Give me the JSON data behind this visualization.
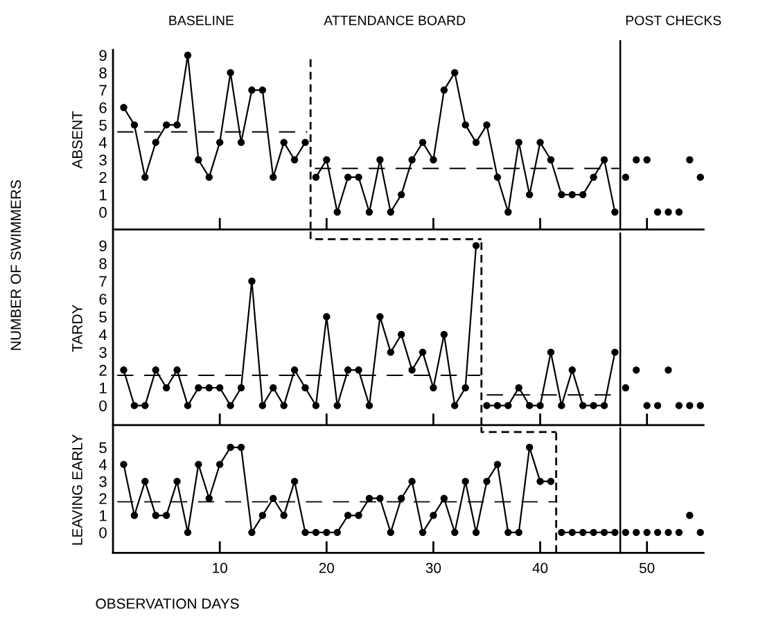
{
  "chart_data": [
    {
      "type": "line",
      "ylabel": "ABSENT",
      "xlim": [
        0,
        55.3
      ],
      "xticks": [
        10,
        20,
        30,
        40,
        50
      ],
      "ylim": [
        -1,
        9.3
      ],
      "yticks": [
        0,
        1,
        2,
        3,
        4,
        5,
        6,
        7,
        8,
        9
      ],
      "tick_labels": "y",
      "marker": "circle",
      "line_style": "solid",
      "annotations": [
        "BASELINE",
        "ATTENDANCE BOARD",
        "POST CHECKS"
      ],
      "ref_lines": [
        {
          "axis": "x",
          "value": 18.5,
          "color": "#000000",
          "line_style": "dashed"
        },
        {
          "axis": "x",
          "value": 47.5,
          "color": "#000000",
          "line_style": "solid"
        }
      ],
      "series": [
        {
          "color": "#000000",
          "x": [
            1,
            2,
            3,
            4,
            5,
            6,
            7,
            8,
            9,
            10,
            11,
            12,
            13,
            14,
            15,
            16,
            17,
            18
          ],
          "values": [
            6,
            5,
            2,
            4,
            5,
            5,
            9,
            3,
            2,
            4,
            8,
            4,
            7,
            7,
            2,
            4,
            3,
            4
          ]
        },
        {
          "color": "#000000",
          "x": [
            19,
            20,
            21,
            22,
            23,
            24,
            25,
            26,
            27,
            28,
            29,
            30,
            31,
            32,
            33,
            34,
            35,
            36,
            37,
            38,
            39,
            40,
            41,
            42,
            43,
            44,
            45,
            46,
            47
          ],
          "values": [
            2,
            3,
            0,
            2,
            2,
            0,
            3,
            0,
            1,
            3,
            4,
            3,
            7,
            8,
            5,
            4,
            5,
            2,
            0,
            4,
            1,
            4,
            3,
            1,
            1,
            1,
            2,
            3,
            0
          ]
        },
        {
          "type": "scatter",
          "color": "#000000",
          "x": [
            48,
            49,
            50,
            51,
            52,
            53,
            54,
            55
          ],
          "values": [
            2,
            3,
            3,
            0,
            0,
            0,
            3,
            2
          ]
        },
        {
          "type": "line",
          "line_style": "dashed",
          "marker": "none",
          "color": "#000000",
          "x": [
            0.4,
            18.2
          ],
          "values": [
            4.6,
            4.6
          ]
        },
        {
          "type": "line",
          "line_style": "dashed",
          "marker": "none",
          "color": "#000000",
          "x": [
            18.9,
            47.4
          ],
          "values": [
            2.5,
            2.5
          ]
        }
      ]
    },
    {
      "type": "line",
      "ylabel": "TARDY",
      "xlim": [
        0,
        55.3
      ],
      "xticks": [
        10,
        20,
        30,
        40,
        50
      ],
      "ylim": [
        -1.1,
        9.8
      ],
      "yticks": [
        0,
        1,
        2,
        3,
        4,
        5,
        6,
        7,
        8,
        9
      ],
      "tick_labels": "y",
      "marker": "circle",
      "line_style": "solid",
      "annotations": [
        "NUMBER OF SWIMMERS"
      ],
      "ref_lines": [
        {
          "axis": "x",
          "value": 34.5,
          "color": "#000000",
          "line_style": "dashed"
        },
        {
          "axis": "x",
          "value": 47.5,
          "color": "#000000",
          "line_style": "solid"
        }
      ],
      "series": [
        {
          "color": "#000000",
          "x": [
            1,
            2,
            3,
            4,
            5,
            6,
            7,
            8,
            9,
            10,
            11,
            12,
            13,
            14,
            15,
            16,
            17,
            18,
            19,
            20,
            21,
            22,
            23,
            24,
            25,
            26,
            27,
            28,
            29,
            30,
            31,
            32,
            33,
            34
          ],
          "values": [
            2,
            0,
            0,
            2,
            1,
            2,
            0,
            1,
            1,
            1,
            0,
            1,
            7,
            0,
            1,
            0,
            2,
            1,
            0,
            5,
            0,
            2,
            2,
            0,
            5,
            3,
            4,
            2,
            3,
            1,
            4,
            0,
            1,
            9
          ]
        },
        {
          "color": "#000000",
          "x": [
            35,
            36,
            37,
            38,
            39,
            40,
            41,
            42,
            43,
            44,
            45,
            46,
            47
          ],
          "values": [
            0,
            0,
            0,
            1,
            0,
            0,
            3,
            0,
            2,
            0,
            0,
            0,
            3
          ]
        },
        {
          "type": "scatter",
          "color": "#000000",
          "x": [
            48,
            49,
            50,
            51,
            52,
            53,
            54,
            55
          ],
          "values": [
            1,
            2,
            0,
            0,
            2,
            0,
            0,
            0
          ]
        },
        {
          "type": "line",
          "line_style": "dashed",
          "marker": "none",
          "color": "#000000",
          "x": [
            0.4,
            34.4
          ],
          "values": [
            1.7,
            1.7
          ]
        },
        {
          "type": "line",
          "line_style": "dashed",
          "marker": "none",
          "color": "#000000",
          "x": [
            35,
            47.5
          ],
          "values": [
            0.6,
            0.6
          ]
        }
      ]
    },
    {
      "type": "line",
      "ylabel": "LEAVING EARLY",
      "xlabel": "OBSERVATION DAYS",
      "xlim": [
        0,
        55.3
      ],
      "xticks": [
        10,
        20,
        30,
        40,
        50
      ],
      "ylim": [
        -1.2,
        6.2
      ],
      "yticks": [
        0,
        1,
        2,
        3,
        4,
        5
      ],
      "marker": "circle",
      "line_style": "solid",
      "ref_lines": [
        {
          "axis": "x",
          "value": 41.5,
          "color": "#000000",
          "line_style": "dashed"
        },
        {
          "axis": "x",
          "value": 47.5,
          "color": "#000000",
          "line_style": "solid"
        }
      ],
      "series": [
        {
          "color": "#000000",
          "x": [
            1,
            2,
            3,
            4,
            5,
            6,
            7,
            8,
            9,
            10,
            11,
            12,
            13,
            14,
            15,
            16,
            17,
            18,
            19,
            20,
            21,
            22,
            23,
            24,
            25,
            26,
            27,
            28,
            29,
            30,
            31,
            32,
            33,
            34,
            35,
            36,
            37,
            38,
            39,
            40,
            41
          ],
          "values": [
            4,
            1,
            3,
            1,
            1,
            3,
            0,
            4,
            2,
            4,
            5,
            5,
            0,
            1,
            2,
            1,
            3,
            0,
            0,
            0,
            0,
            1,
            1,
            2,
            2,
            0,
            2,
            3,
            0,
            1,
            2,
            0,
            3,
            0,
            3,
            4,
            0,
            0,
            5,
            3,
            3
          ]
        },
        {
          "color": "#000000",
          "x": [
            42,
            43,
            44,
            45,
            46,
            47
          ],
          "values": [
            0,
            0,
            0,
            0,
            0,
            0
          ]
        },
        {
          "type": "scatter",
          "color": "#000000",
          "x": [
            48,
            49,
            50,
            51,
            52,
            53,
            54,
            55
          ],
          "values": [
            0,
            0,
            0,
            0,
            0,
            0,
            1,
            0
          ]
        },
        {
          "type": "line",
          "line_style": "dashed",
          "marker": "none",
          "color": "#000000",
          "x": [
            0.4,
            41.4
          ],
          "values": [
            1.8,
            1.8
          ]
        }
      ]
    }
  ]
}
